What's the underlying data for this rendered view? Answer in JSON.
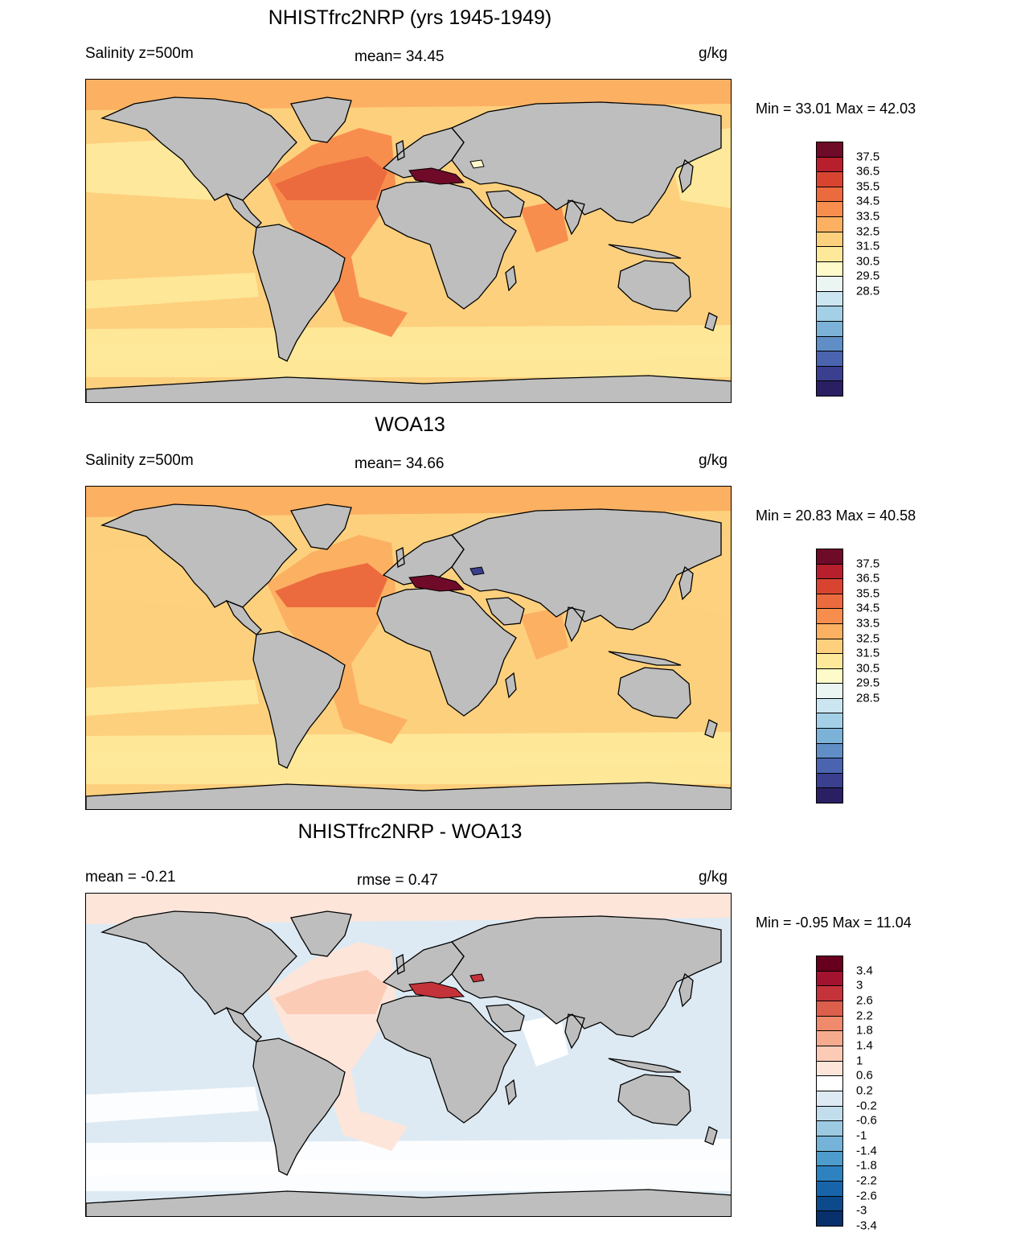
{
  "panels": [
    {
      "title": "NHISTfrc2NRP (yrs 1945-1949)",
      "left_label": "Salinity z=500m",
      "center_label": "mean=  34.45",
      "units": "g/kg",
      "min_max": "Min =  33.01 Max =  42.03",
      "variant": "model",
      "colorbar": {
        "colors": [
          "#2b1f63",
          "#3a3f8f",
          "#4a64b0",
          "#5f8fc6",
          "#7cb2d8",
          "#a3d0e6",
          "#cbe6f0",
          "#ebf6f2",
          "#fefac9",
          "#fee99a",
          "#fdd07e",
          "#fcb062",
          "#f88e4e",
          "#ec6b3e",
          "#d84430",
          "#b61f2b",
          "#6f0a28"
        ],
        "labels": [
          "37.5",
          "36.5",
          "35.5",
          "34.5",
          "33.5",
          "32.5",
          "31.5",
          "30.5",
          "29.5",
          "28.5"
        ]
      },
      "colors": {
        "ocean_base": "#fdd07e",
        "ocean_low": "#fee99a",
        "north_pacific": "#feeaa0",
        "atlantic": "#f88e4e",
        "atlantic_core": "#ec6b3e",
        "arabian": "#f88e4e",
        "arctic": "#fcb062",
        "med": "#6f0a28"
      }
    },
    {
      "title": "WOA13",
      "left_label": "Salinity z=500m",
      "center_label": "mean=  34.66",
      "units": "g/kg",
      "min_max": "Min =  20.83 Max =  40.58",
      "variant": "obs",
      "colorbar": {
        "colors": [
          "#2b1f63",
          "#3a3f8f",
          "#4a64b0",
          "#5f8fc6",
          "#7cb2d8",
          "#a3d0e6",
          "#cbe6f0",
          "#ebf6f2",
          "#fefac9",
          "#fee99a",
          "#fdd07e",
          "#fcb062",
          "#f88e4e",
          "#ec6b3e",
          "#d84430",
          "#b61f2b",
          "#6f0a28"
        ],
        "labels": [
          "37.5",
          "36.5",
          "35.5",
          "34.5",
          "33.5",
          "32.5",
          "31.5",
          "30.5",
          "29.5",
          "28.5"
        ]
      },
      "colors": {
        "ocean_base": "#fdd07e",
        "ocean_low": "#fee99a",
        "north_pacific": "#fdd07e",
        "atlantic": "#fcb062",
        "atlantic_core": "#ec6b3e",
        "arabian": "#fcb062",
        "arctic": "#fcb062",
        "med": "#6f0a28"
      }
    },
    {
      "title": "NHISTfrc2NRP - WOA13",
      "left_label": "mean =  -0.21",
      "center_label": "rmse =   0.47",
      "units": "g/kg",
      "min_max": "Min =  -0.95 Max =  11.04",
      "variant": "diff",
      "colorbar": {
        "colors": [
          "#08306b",
          "#0d4a8c",
          "#1764ab",
          "#2f82c0",
          "#4e9ccd",
          "#75b4d8",
          "#9ccae2",
          "#c2ddec",
          "#ddeaf3",
          "#ffffff",
          "#fde5da",
          "#fbcbb6",
          "#f7ab8e",
          "#ef8a6c",
          "#dc5f4c",
          "#c4323a",
          "#a3132f",
          "#67001f"
        ],
        "labels": [
          "3.4",
          "3",
          "2.6",
          "2.2",
          "1.8",
          "1.4",
          "1",
          "0.6",
          "0.2",
          "-0.2",
          "-0.6",
          "-1",
          "-1.4",
          "-1.8",
          "-2.2",
          "-2.6",
          "-3",
          "-3.4"
        ]
      },
      "colors": {
        "ocean_base": "#ddeaf3",
        "ocean_low": "#ffffff",
        "north_pacific": "#ddeaf3",
        "atlantic": "#fde5da",
        "atlantic_core": "#fbcbb6",
        "arabian": "#ffffff",
        "arctic": "#fde5da",
        "med": "#c4323a"
      }
    }
  ]
}
